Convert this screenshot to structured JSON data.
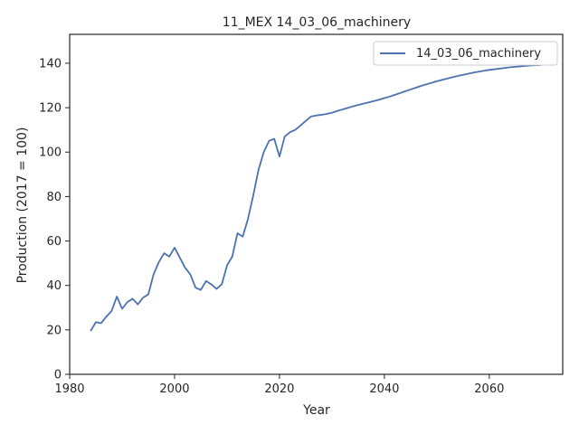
{
  "chart_data": {
    "type": "line",
    "title": "11_MEX 14_03_06_machinery",
    "xlabel": "Year",
    "ylabel": "Production (2017 = 100)",
    "xlim": [
      1980,
      2074
    ],
    "ylim": [
      0,
      153
    ],
    "xticks": [
      1980,
      2000,
      2020,
      2040,
      2060
    ],
    "yticks": [
      0,
      20,
      40,
      60,
      80,
      100,
      120,
      140
    ],
    "grid": false,
    "legend_position": "top-right",
    "series": [
      {
        "name": "14_03_06_machinery",
        "color": "#4c72b0",
        "x": [
          1984,
          1985,
          1986,
          1987,
          1988,
          1989,
          1990,
          1991,
          1992,
          1993,
          1994,
          1995,
          1996,
          1997,
          1998,
          1999,
          2000,
          2001,
          2002,
          2003,
          2004,
          2005,
          2006,
          2007,
          2008,
          2009,
          2010,
          2011,
          2012,
          2013,
          2014,
          2015,
          2016,
          2017,
          2018,
          2019,
          2020,
          2021,
          2022,
          2023,
          2024,
          2025,
          2026,
          2027,
          2028,
          2029,
          2030,
          2031,
          2032,
          2033,
          2034,
          2035,
          2036,
          2037,
          2038,
          2039,
          2040,
          2041,
          2042,
          2043,
          2044,
          2045,
          2046,
          2047,
          2048,
          2049,
          2050,
          2051,
          2052,
          2053,
          2054,
          2055,
          2056,
          2057,
          2058,
          2059,
          2060,
          2061,
          2062,
          2063,
          2064,
          2065,
          2066,
          2067,
          2068,
          2069,
          2070
        ],
        "y": [
          19.5,
          23.5,
          23,
          26,
          28.5,
          35,
          29.5,
          32.5,
          34,
          31.5,
          34.5,
          36,
          45,
          50.5,
          54.5,
          53,
          57,
          52.5,
          48,
          45,
          39,
          38,
          42,
          40.5,
          38.5,
          40.5,
          49,
          53,
          63.5,
          62,
          70,
          80.5,
          92,
          100,
          105,
          106,
          98,
          107,
          109,
          110,
          112,
          114,
          116,
          116.5,
          116.8,
          117.2,
          117.7,
          118.5,
          119.2,
          119.9,
          120.6,
          121.2,
          121.8,
          122.4,
          123,
          123.6,
          124.3,
          125,
          125.8,
          126.6,
          127.4,
          128.2,
          129,
          129.8,
          130.5,
          131.2,
          131.9,
          132.5,
          133.1,
          133.7,
          134.3,
          134.8,
          135.3,
          135.8,
          136.2,
          136.6,
          137,
          137.3,
          137.6,
          137.9,
          138.2,
          138.4,
          138.6,
          138.8,
          139,
          139.1,
          139.2
        ]
      }
    ]
  }
}
